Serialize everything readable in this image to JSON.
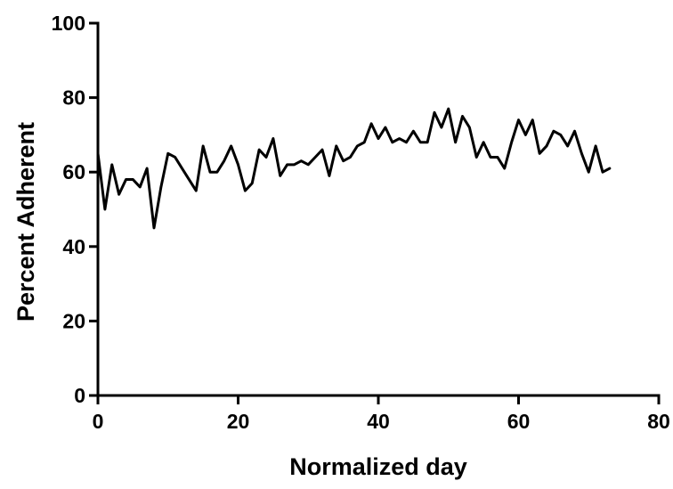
{
  "chart_data": {
    "type": "line",
    "xlabel": "Normalized day",
    "ylabel": "Percent Adherent",
    "xlim": [
      0,
      80
    ],
    "ylim": [
      0,
      100
    ],
    "x_ticks": [
      0,
      20,
      40,
      60,
      80
    ],
    "y_ticks": [
      0,
      20,
      40,
      60,
      80,
      100
    ],
    "grid": false,
    "series": [
      {
        "color": "#000000",
        "x": [
          0,
          1,
          2,
          3,
          4,
          5,
          6,
          7,
          8,
          9,
          10,
          11,
          12,
          13,
          14,
          15,
          16,
          17,
          18,
          19,
          20,
          21,
          22,
          23,
          24,
          25,
          26,
          27,
          28,
          29,
          30,
          31,
          32,
          33,
          34,
          35,
          36,
          37,
          38,
          39,
          40,
          41,
          42,
          43,
          44,
          45,
          46,
          47,
          48,
          49,
          50,
          51,
          52,
          53,
          54,
          55,
          56,
          57,
          58,
          59,
          60,
          61,
          62,
          63,
          64,
          65,
          66,
          67,
          68,
          69,
          70,
          71,
          72,
          73
        ],
        "y": [
          65,
          50,
          62,
          54,
          58,
          58,
          56,
          61,
          45,
          56,
          65,
          64,
          61,
          58,
          55,
          67,
          60,
          60,
          63,
          67,
          62,
          55,
          57,
          66,
          64,
          69,
          59,
          62,
          62,
          63,
          62,
          64,
          66,
          59,
          67,
          63,
          64,
          67,
          68,
          73,
          69,
          72,
          68,
          69,
          68,
          71,
          68,
          68,
          76,
          72,
          77,
          68,
          75,
          72,
          64,
          68,
          64,
          64,
          61,
          68,
          74,
          70,
          74,
          65,
          67,
          71,
          70,
          67,
          71,
          65,
          60,
          67,
          60,
          61
        ]
      }
    ]
  }
}
